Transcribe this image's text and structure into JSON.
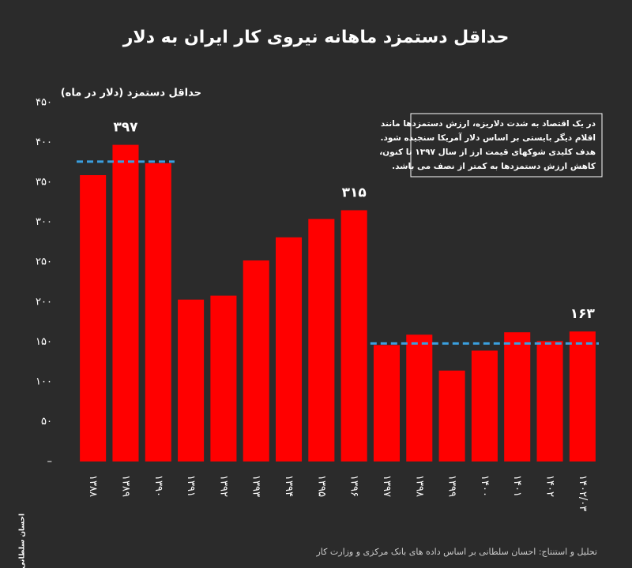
{
  "chart_data": {
    "type": "bar",
    "title": "حداقل دستمزد ماهانه نیروی کار ایران به دلار",
    "y_label": "حداقل دستمزد (دلار در ماه)",
    "categories": [
      "۱۳۸۸",
      "۱۳۸۹",
      "۱۳۹۰",
      "۱۳۹۱",
      "۱۳۹۲",
      "۱۳۹۳",
      "۱۳۹۴",
      "۱۳۹۵",
      "۱۳۹۶",
      "۱۳۹۷",
      "۱۳۹۸",
      "۱۳۹۹",
      "۱۴۰۰",
      "۱۴۰۱",
      "۱۴۰۲",
      "۱۴۰۲/۰۳"
    ],
    "values": [
      359,
      397,
      374,
      203,
      208,
      252,
      281,
      304,
      315,
      146,
      159,
      114,
      139,
      162,
      151,
      163
    ],
    "value_labels": [
      null,
      "۳۹۷",
      null,
      null,
      null,
      null,
      null,
      null,
      "۳۱۵",
      null,
      null,
      null,
      null,
      null,
      null,
      "۱۶۳"
    ],
    "color": "#ff0000",
    "ylim": [
      0,
      450
    ],
    "yticks": [
      {
        "value": 0,
        "label": "–"
      },
      {
        "value": 50,
        "label": "۵۰"
      },
      {
        "value": 100,
        "label": "۱۰۰"
      },
      {
        "value": 150,
        "label": "۱۵۰"
      },
      {
        "value": 200,
        "label": "۲۰۰"
      },
      {
        "value": 250,
        "label": "۲۵۰"
      },
      {
        "value": 300,
        "label": "۳۰۰"
      },
      {
        "value": 350,
        "label": "۳۵۰"
      },
      {
        "value": 400,
        "label": "۴۰۰"
      },
      {
        "value": 450,
        "label": "۴۵۰"
      }
    ],
    "reference_lines": [
      {
        "value": 376,
        "categories": [
          0,
          2
        ],
        "color": "#3aa0e0"
      },
      {
        "value": 148,
        "categories": [
          9,
          15
        ],
        "color": "#3aa0e0"
      }
    ],
    "annotation": [
      "در یک اقتصاد به شدت دلاریزه، ارزش دستمزدها مانند",
      "اقلام دیگر بایستی بر اساس دلار آمریکا سنجیده شود.",
      "هدف کلیدی شوکهای قیمت ارز از سال ۱۳۹۷ تا کنون،",
      "کاهش ارزش دستمزدها به کمتر از نصف می باشد."
    ],
    "source": "تحلیل و استنتاج: احسان سلطانی بر اساس داده های بانک مرکزی و وزارت کار",
    "logo": "احسان سلطانی"
  }
}
